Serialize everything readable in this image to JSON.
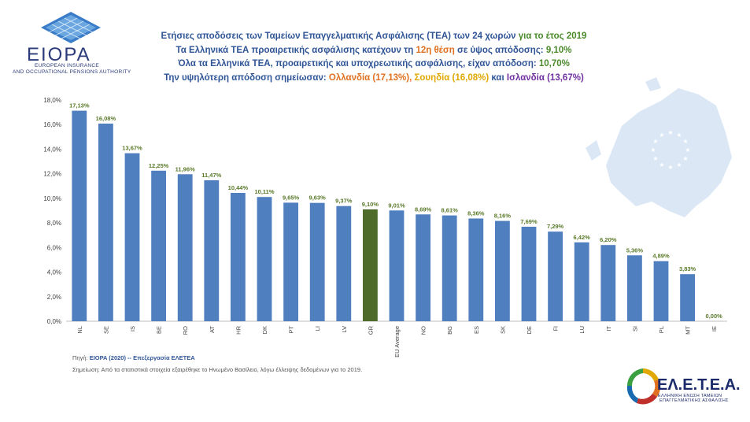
{
  "header": {
    "logo_name": "EIOPA",
    "logo_sub1": "EUROPEAN INSURANCE",
    "logo_sub2": "AND OCCUPATIONAL PENSIONS AUTHORITY",
    "title_line1_a": "Ετήσιες αποδόσεις των Ταμείων Επαγγελματικής Ασφάλισης (ΤΕΑ) των 24 χωρών",
    "title_line1_b": " για το έτος 2019",
    "title_line2_a": "Τα Ελληνικά ΤΕΑ προαιρετικής ασφάλισης κατέχουν τη ",
    "title_line2_b": "12η θέση",
    "title_line2_c": " σε ύψος απόδοσης: ",
    "title_line2_d": "9,10%",
    "title_line3_a": "Όλα τα Ελληνικά ΤΕΑ, προαιρετικής και υποχρεωτικής ασφάλισης, είχαν απόδοση: ",
    "title_line3_b": "10,70%",
    "title_line4_a": "Την υψηλότερη απόδοση σημείωσαν: ",
    "title_line4_b": "Ολλανδία (17,13%),",
    "title_line4_c": "  Σουηδία (16,08%)",
    "title_line4_d": " και ",
    "title_line4_e": "Ισλανδία (13,67%)"
  },
  "footer": {
    "source_prefix": "Πηγή: ",
    "source_link": "EIOPA (2020)",
    "source_tail": " -- Επεξεργασία ΕΛΕΤΕΑ",
    "note": "Σημείωση: Από τα στατιστικά στοιχεία εξαιρέθηκε το Ηνωμένο Βασίλειο, λόγω έλλειψης δεδομένων για το 2019."
  },
  "brand": {
    "name": "ΕΛ.Ε.Τ.Ε.Α.",
    "sub1": "ΕΛΛΗΝΙΚΗ ΕΝΩΣΗ ΤΑΜΕΙΩΝ",
    "sub2": "ΕΠΑΓΓΕΛΜΑΤΙΚΗΣ ΑΣΦΑΛΙΣΗΣ"
  },
  "colors": {
    "bar": "#4f7fbf",
    "bar_highlight": "#4e6b2a",
    "label": "#5a7a2a",
    "map": "#dbe7f5"
  },
  "chart_data": {
    "type": "bar",
    "categories": [
      "NL",
      "SE",
      "IS",
      "BE",
      "RO",
      "AT",
      "HR",
      "DK",
      "PT",
      "LI",
      "LV",
      "GR",
      "EU Average",
      "NO",
      "BG",
      "ES",
      "SK",
      "DE",
      "FI",
      "LU",
      "IT",
      "SI",
      "PL",
      "MT",
      "IE"
    ],
    "values": [
      17.13,
      16.08,
      13.67,
      12.25,
      11.96,
      11.47,
      10.44,
      10.11,
      9.65,
      9.63,
      9.37,
      9.1,
      9.01,
      8.69,
      8.61,
      8.36,
      8.16,
      7.69,
      7.29,
      6.42,
      6.2,
      5.36,
      4.89,
      3.83,
      0.0
    ],
    "data_labels": [
      "17,13%",
      "16,08%",
      "13,67%",
      "12,25%",
      "11,96%",
      "11,47%",
      "10,44%",
      "10,11%",
      "9,65%",
      "9,63%",
      "9,37%",
      "9,10%",
      "9,01%",
      "8,69%",
      "8,61%",
      "8,36%",
      "8,16%",
      "7,69%",
      "7,29%",
      "6,42%",
      "6,20%",
      "5,36%",
      "4,89%",
      "3,83%",
      "0,00%"
    ],
    "highlight_category": "GR",
    "yticks": [
      0,
      2,
      4,
      6,
      8,
      10,
      12,
      14,
      16,
      18
    ],
    "ytick_labels": [
      "0,0%",
      "2,0%",
      "4,0%",
      "6,0%",
      "8,0%",
      "10,0%",
      "12,0%",
      "14,0%",
      "16,0%",
      "18,0%"
    ],
    "ylim": [
      0,
      18
    ],
    "grid": false,
    "legend": "none"
  }
}
